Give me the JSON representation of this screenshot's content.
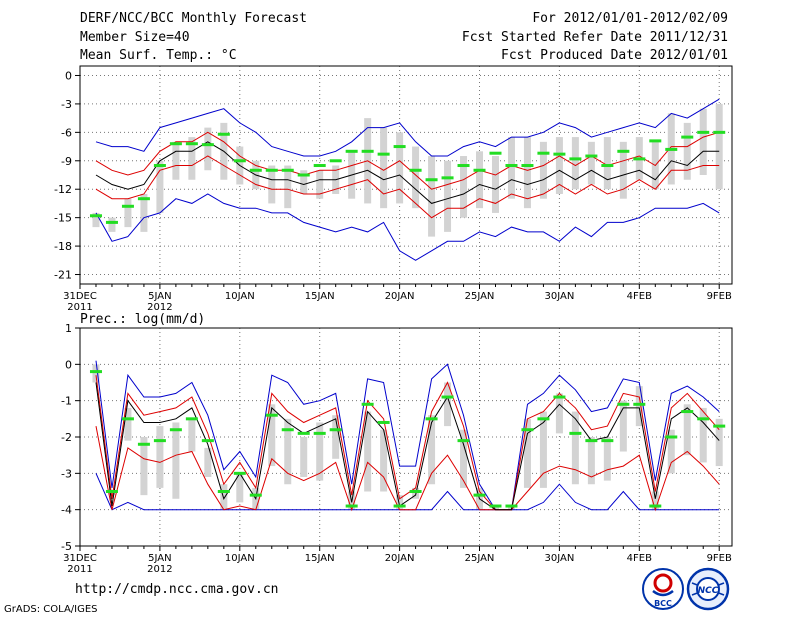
{
  "header": {
    "title": "DERF/NCC/BCC Monthly Forecast",
    "member_size": "Member Size=40",
    "variable": "Mean Surf. Temp.: °C",
    "period": "For 2012/01/01-2012/02/09",
    "started": "Fcst Started Refer Date 2011/12/31",
    "produced": "Fcst Produced Date 2012/01/01"
  },
  "footer": {
    "url": "http://cmdp.ncc.cma.gov.cn",
    "grads": "GrADS: COLA/IGES",
    "logo_left_text": "BCC",
    "logo_right_text": "NCC"
  },
  "colors": {
    "mean": "#000000",
    "inner": "#dd0000",
    "outer": "#0000cc",
    "box": "#d3d3d3",
    "median": "#22dd22",
    "grid": "#777777"
  },
  "chart_data": [
    {
      "type": "box-plume",
      "title": "Mean Surf. Temp.: °C",
      "xlabels": [
        {
          "day": 0,
          "line1": "31DEC",
          "line2": "2011"
        },
        {
          "day": 5,
          "line1": "5JAN",
          "line2": "2012"
        },
        {
          "day": 10,
          "line1": "10JAN",
          "line2": ""
        },
        {
          "day": 15,
          "line1": "15JAN",
          "line2": ""
        },
        {
          "day": 20,
          "line1": "20JAN",
          "line2": ""
        },
        {
          "day": 25,
          "line1": "25JAN",
          "line2": ""
        },
        {
          "day": 30,
          "line1": "30JAN",
          "line2": ""
        },
        {
          "day": 35,
          "line1": "4FEB",
          "line2": ""
        },
        {
          "day": 40,
          "line1": "9FEB",
          "line2": ""
        }
      ],
      "ylim": [
        -22,
        1
      ],
      "yticks": [
        0,
        -3,
        -6,
        -9,
        -12,
        -15,
        -18,
        -21
      ],
      "days": [
        1,
        2,
        3,
        4,
        5,
        6,
        7,
        8,
        9,
        10,
        11,
        12,
        13,
        14,
        15,
        16,
        17,
        18,
        19,
        20,
        21,
        22,
        23,
        24,
        25,
        26,
        27,
        28,
        29,
        30,
        31,
        32,
        33,
        34,
        35,
        36,
        37,
        38,
        39,
        40
      ],
      "mean": [
        -10.5,
        -11.5,
        -12.0,
        -11.5,
        -9.0,
        -8.0,
        -8.0,
        -7.0,
        -8.0,
        -9.5,
        -10.5,
        -11.0,
        -11.0,
        -11.5,
        -11.0,
        -11.0,
        -10.5,
        -10.0,
        -11.0,
        -10.5,
        -12.0,
        -13.5,
        -13.0,
        -12.5,
        -11.5,
        -12.0,
        -11.0,
        -11.5,
        -11.0,
        -10.0,
        -11.0,
        -10.0,
        -11.0,
        -10.5,
        -10.0,
        -11.0,
        -9.0,
        -9.5,
        -8.0,
        -8.0
      ],
      "inner_upper": [
        -9.0,
        -10.0,
        -10.5,
        -10.0,
        -8.0,
        -7.0,
        -7.0,
        -6.0,
        -7.0,
        -8.5,
        -9.5,
        -10.0,
        -10.0,
        -10.5,
        -10.0,
        -10.0,
        -9.5,
        -9.0,
        -10.0,
        -9.0,
        -10.5,
        -12.0,
        -11.5,
        -11.0,
        -10.0,
        -10.5,
        -9.5,
        -10.0,
        -9.5,
        -8.5,
        -9.5,
        -8.5,
        -9.5,
        -9.0,
        -8.5,
        -9.5,
        -7.5,
        -7.5,
        -6.5,
        -6.0
      ],
      "inner_lower": [
        -12.0,
        -13.0,
        -13.0,
        -12.5,
        -10.0,
        -9.5,
        -9.5,
        -8.5,
        -9.5,
        -10.5,
        -11.5,
        -12.0,
        -12.0,
        -12.5,
        -12.5,
        -12.0,
        -11.5,
        -11.0,
        -12.5,
        -12.0,
        -13.5,
        -15.0,
        -14.0,
        -14.0,
        -13.0,
        -13.5,
        -12.5,
        -13.0,
        -12.5,
        -11.5,
        -12.5,
        -11.5,
        -12.5,
        -12.0,
        -11.0,
        -12.0,
        -10.0,
        -10.0,
        -9.5,
        -9.5
      ],
      "outer_upper": [
        -7.0,
        -7.5,
        -7.5,
        -8.0,
        -5.5,
        -5.0,
        -4.5,
        -4.0,
        -3.5,
        -5.0,
        -6.0,
        -7.5,
        -8.0,
        -8.5,
        -8.5,
        -8.0,
        -7.0,
        -5.5,
        -5.5,
        -5.0,
        -7.0,
        -8.5,
        -8.5,
        -7.5,
        -7.0,
        -7.5,
        -6.5,
        -6.5,
        -6.0,
        -5.0,
        -5.5,
        -6.5,
        -6.0,
        -5.5,
        -5.0,
        -5.5,
        -4.0,
        -4.5,
        -3.5,
        -2.5
      ],
      "outer_lower": [
        -14.5,
        -17.5,
        -17.0,
        -15.0,
        -14.5,
        -13.0,
        -13.5,
        -12.5,
        -13.5,
        -14.0,
        -14.0,
        -14.5,
        -14.5,
        -15.5,
        -16.0,
        -16.5,
        -16.0,
        -16.5,
        -15.5,
        -18.5,
        -19.5,
        -18.5,
        -17.5,
        -17.5,
        -16.5,
        -17.0,
        -16.0,
        -16.5,
        -16.5,
        -17.5,
        -16.0,
        -17.0,
        -15.5,
        -15.5,
        -15.0,
        -14.0,
        -14.0,
        -14.0,
        -13.5,
        -14.5
      ],
      "box_top": [
        -14.5,
        -15.0,
        -13.0,
        -12.5,
        -9.0,
        -7.0,
        -6.5,
        -5.5,
        -5.0,
        -7.5,
        -9.0,
        -9.5,
        -9.5,
        -10.0,
        -10.0,
        -9.5,
        -8.0,
        -4.5,
        -5.5,
        -6.0,
        -7.5,
        -8.5,
        -9.0,
        -8.5,
        -8.0,
        -8.5,
        -6.5,
        -6.5,
        -7.0,
        -6.5,
        -6.5,
        -7.0,
        -6.5,
        -7.0,
        -6.5,
        -7.0,
        -4.0,
        -5.0,
        -3.5,
        -3.0
      ],
      "box_bottom": [
        -16.0,
        -16.5,
        -16.0,
        -16.5,
        -14.5,
        -11.0,
        -11.0,
        -10.0,
        -11.0,
        -11.5,
        -12.0,
        -13.5,
        -14.0,
        -12.5,
        -13.0,
        -12.5,
        -13.0,
        -13.5,
        -14.0,
        -13.5,
        -14.0,
        -17.0,
        -16.5,
        -15.0,
        -14.0,
        -14.5,
        -13.0,
        -14.0,
        -13.0,
        -12.5,
        -12.0,
        -11.5,
        -12.0,
        -13.0,
        -11.0,
        -12.0,
        -11.5,
        -11.0,
        -10.5,
        -12.0
      ],
      "median": [
        -14.8,
        -15.5,
        -13.8,
        -13.0,
        -9.5,
        -7.2,
        -7.2,
        -7.3,
        -6.2,
        -9.0,
        -10.0,
        -10.0,
        -10.0,
        -10.5,
        -9.5,
        -9.0,
        -8.0,
        -8.0,
        -8.3,
        -7.5,
        -10.0,
        -11.0,
        -10.8,
        -9.5,
        -10.0,
        -8.2,
        -9.5,
        -9.5,
        -8.2,
        -8.3,
        -8.8,
        -8.5,
        -9.5,
        -8.0,
        -8.8,
        -6.9,
        -7.8,
        -6.5,
        -6.0,
        -6.0
      ]
    },
    {
      "type": "box-plume",
      "title": "Prec.: log(mm/d)",
      "xlabels": [
        {
          "day": 0,
          "line1": "31DEC",
          "line2": "2011"
        },
        {
          "day": 5,
          "line1": "5JAN",
          "line2": "2012"
        },
        {
          "day": 10,
          "line1": "10JAN",
          "line2": ""
        },
        {
          "day": 15,
          "line1": "15JAN",
          "line2": ""
        },
        {
          "day": 20,
          "line1": "20JAN",
          "line2": ""
        },
        {
          "day": 25,
          "line1": "25JAN",
          "line2": ""
        },
        {
          "day": 30,
          "line1": "30JAN",
          "line2": ""
        },
        {
          "day": 35,
          "line1": "4FEB",
          "line2": ""
        },
        {
          "day": 40,
          "line1": "9FEB",
          "line2": ""
        }
      ],
      "ylim": [
        -5,
        1
      ],
      "yticks": [
        1,
        0,
        -1,
        -2,
        -3,
        -4,
        -5
      ],
      "days": [
        1,
        2,
        3,
        4,
        5,
        6,
        7,
        8,
        9,
        10,
        11,
        12,
        13,
        14,
        15,
        16,
        17,
        18,
        19,
        20,
        21,
        22,
        23,
        24,
        25,
        26,
        27,
        28,
        29,
        30,
        31,
        32,
        33,
        34,
        35,
        36,
        37,
        38,
        39,
        40
      ],
      "mean": [
        -0.5,
        -3.9,
        -1.0,
        -1.6,
        -1.6,
        -1.5,
        -1.2,
        -2.2,
        -3.7,
        -3.0,
        -3.7,
        -1.2,
        -1.6,
        -1.9,
        -1.7,
        -1.5,
        -3.8,
        -1.3,
        -1.8,
        -3.9,
        -3.6,
        -1.6,
        -0.9,
        -2.2,
        -3.7,
        -4.0,
        -4.0,
        -1.9,
        -1.6,
        -1.1,
        -1.5,
        -2.1,
        -2.0,
        -1.2,
        -1.2,
        -3.7,
        -1.5,
        -1.2,
        -1.6,
        -2.1
      ],
      "inner_upper": [
        -0.3,
        -3.7,
        -0.8,
        -1.4,
        -1.3,
        -1.2,
        -0.9,
        -1.9,
        -3.3,
        -2.7,
        -3.4,
        -0.8,
        -1.3,
        -1.6,
        -1.4,
        -1.2,
        -3.6,
        -1.0,
        -1.5,
        -3.7,
        -3.4,
        -1.3,
        -0.5,
        -1.7,
        -3.5,
        -4.0,
        -4.0,
        -1.5,
        -1.3,
        -0.8,
        -1.2,
        -1.8,
        -1.7,
        -0.8,
        -0.9,
        -3.5,
        -1.2,
        -0.8,
        -1.3,
        -1.8
      ],
      "inner_lower": [
        -1.7,
        -4.0,
        -2.3,
        -2.6,
        -2.7,
        -2.5,
        -2.4,
        -3.3,
        -4.0,
        -3.9,
        -4.0,
        -2.6,
        -3.0,
        -3.2,
        -3.0,
        -2.7,
        -4.0,
        -2.7,
        -3.1,
        -4.0,
        -4.0,
        -3.0,
        -2.5,
        -3.2,
        -4.0,
        -4.0,
        -4.0,
        -3.5,
        -3.0,
        -2.8,
        -2.9,
        -3.1,
        -2.9,
        -2.8,
        -2.5,
        -4.0,
        -2.7,
        -2.4,
        -2.8,
        -3.3
      ],
      "outer_upper": [
        0.1,
        -3.4,
        -0.3,
        -0.9,
        -0.9,
        -0.8,
        -0.5,
        -1.4,
        -2.9,
        -2.4,
        -3.1,
        -0.3,
        -0.5,
        -1.1,
        -1.0,
        -0.8,
        -3.3,
        -0.4,
        -0.5,
        -2.8,
        -2.8,
        -0.4,
        0.0,
        -1.4,
        -3.3,
        -4.0,
        -4.0,
        -1.1,
        -0.8,
        -0.3,
        -0.7,
        -1.3,
        -1.2,
        -0.4,
        -0.5,
        -3.2,
        -0.8,
        -0.6,
        -0.9,
        -1.3
      ],
      "outer_lower": [
        -3.0,
        -4.0,
        -3.8,
        -4.0,
        -4.0,
        -4.0,
        -4.0,
        -4.0,
        -4.0,
        -4.0,
        -4.0,
        -4.0,
        -4.0,
        -4.0,
        -4.0,
        -4.0,
        -4.0,
        -4.0,
        -4.0,
        -4.0,
        -4.0,
        -4.0,
        -3.5,
        -4.0,
        -4.0,
        -4.0,
        -4.0,
        -4.0,
        -3.8,
        -3.3,
        -3.8,
        -4.0,
        -4.0,
        -3.5,
        -4.0,
        -4.0,
        -4.0,
        -4.0,
        -4.0,
        -4.0
      ],
      "box_top": [
        0.0,
        -3.5,
        -1.2,
        -2.0,
        -1.7,
        -1.6,
        -1.5,
        -2.3,
        -3.3,
        -3.0,
        -3.4,
        -1.1,
        -1.5,
        -2.0,
        -1.6,
        -1.4,
        -3.5,
        -1.3,
        -1.8,
        -3.6,
        -3.4,
        -1.4,
        -0.5,
        -1.8,
        -3.4,
        -3.9,
        -3.9,
        -1.5,
        -1.3,
        -0.8,
        -1.3,
        -2.0,
        -2.0,
        -1.0,
        -0.6,
        -3.5,
        -1.8,
        -1.1,
        -1.2,
        -1.5
      ],
      "box_bottom": [
        -0.5,
        -3.6,
        -2.1,
        -3.6,
        -3.4,
        -3.7,
        -2.4,
        -3.1,
        -4.0,
        -3.8,
        -4.0,
        -2.8,
        -3.3,
        -3.1,
        -3.2,
        -2.6,
        -4.0,
        -3.5,
        -3.5,
        -4.0,
        -3.7,
        -3.3,
        -1.7,
        -3.4,
        -4.0,
        -4.0,
        -4.0,
        -3.4,
        -3.4,
        -1.9,
        -3.3,
        -3.3,
        -3.2,
        -2.4,
        -1.7,
        -4.0,
        -3.0,
        -2.5,
        -2.7,
        -2.8
      ],
      "median": [
        -0.2,
        -3.5,
        -1.5,
        -2.2,
        -2.1,
        -1.8,
        -1.5,
        -2.1,
        -3.5,
        -3.0,
        -3.6,
        -1.4,
        -1.8,
        -1.9,
        -1.9,
        -1.8,
        -3.9,
        -1.1,
        -1.6,
        -3.9,
        -3.5,
        -1.5,
        -0.9,
        -2.1,
        -3.6,
        -3.9,
        -3.9,
        -1.8,
        -1.5,
        -0.9,
        -1.9,
        -2.1,
        -2.1,
        -1.1,
        -1.1,
        -3.9,
        -2.0,
        -1.3,
        -1.5,
        -1.7
      ]
    }
  ]
}
